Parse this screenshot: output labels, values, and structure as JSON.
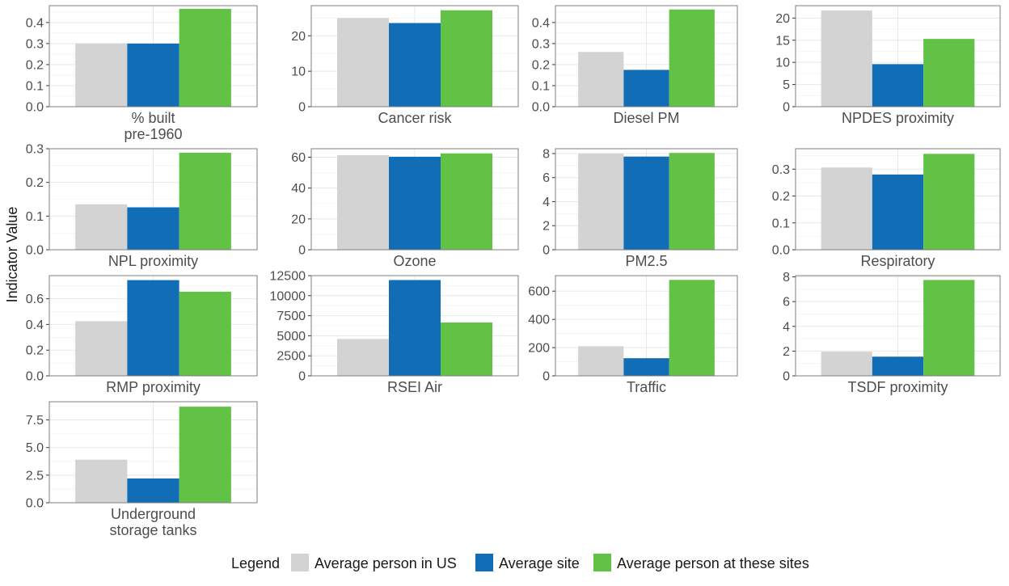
{
  "y_axis_title": "Indicator Value",
  "legend": {
    "title": "Legend",
    "items": [
      {
        "label": "Average person in US",
        "color": "#d3d3d3"
      },
      {
        "label": "Average site",
        "color": "#116db6"
      },
      {
        "label": "Average person at these sites",
        "color": "#62c246"
      }
    ]
  },
  "chart_data": [
    {
      "type": "bar",
      "title": [
        "% built",
        "pre-1960"
      ],
      "ylim": [
        0,
        0.48
      ],
      "ticks": [
        "0.0",
        "0.1",
        "0.2",
        "0.3",
        "0.4"
      ],
      "values": [
        0.3,
        0.3,
        0.465
      ]
    },
    {
      "type": "bar",
      "title": [
        "Cancer risk"
      ],
      "ylim": [
        0,
        28.5
      ],
      "ticks": [
        "0",
        "10",
        "20"
      ],
      "values": [
        25.0,
        23.6,
        27.2
      ]
    },
    {
      "type": "bar",
      "title": [
        "Diesel PM"
      ],
      "ylim": [
        0,
        0.48
      ],
      "ticks": [
        "0.0",
        "0.1",
        "0.2",
        "0.3",
        "0.4"
      ],
      "values": [
        0.26,
        0.175,
        0.462
      ]
    },
    {
      "type": "bar",
      "title": [
        "NPDES proximity"
      ],
      "ylim": [
        0,
        22.8
      ],
      "ticks": [
        "0",
        "5",
        "10",
        "15",
        "20"
      ],
      "values": [
        21.7,
        9.6,
        15.3
      ]
    },
    {
      "type": "bar",
      "title": [
        "NPL proximity"
      ],
      "ylim": [
        0,
        0.3
      ],
      "ticks": [
        "0.0",
        "0.1",
        "0.2",
        "0.3"
      ],
      "values": [
        0.135,
        0.126,
        0.288
      ]
    },
    {
      "type": "bar",
      "title": [
        "Ozone"
      ],
      "ylim": [
        0,
        65.5
      ],
      "ticks": [
        "0",
        "20",
        "40",
        "60"
      ],
      "values": [
        61.4,
        60.3,
        62.5
      ]
    },
    {
      "type": "bar",
      "title": [
        "PM2.5"
      ],
      "ylim": [
        0,
        8.4
      ],
      "ticks": [
        "0",
        "2",
        "4",
        "6",
        "8"
      ],
      "values": [
        8.0,
        7.75,
        8.05
      ]
    },
    {
      "type": "bar",
      "title": [
        "Respiratory"
      ],
      "ylim": [
        0,
        0.376
      ],
      "ticks": [
        "0.0",
        "0.1",
        "0.2",
        "0.3"
      ],
      "values": [
        0.306,
        0.28,
        0.357
      ]
    },
    {
      "type": "bar",
      "title": [
        "RMP proximity"
      ],
      "ylim": [
        0,
        0.78
      ],
      "ticks": [
        "0.0",
        "0.2",
        "0.4",
        "0.6"
      ],
      "values": [
        0.425,
        0.745,
        0.655
      ]
    },
    {
      "type": "bar",
      "title": [
        "RSEI Air"
      ],
      "ylim": [
        0,
        12500
      ],
      "ticks": [
        "0",
        "2500",
        "5000",
        "7500",
        "10000",
        "12500"
      ],
      "values": [
        4600,
        11950,
        6650
      ]
    },
    {
      "type": "bar",
      "title": [
        "Traffic"
      ],
      "ylim": [
        0,
        710
      ],
      "ticks": [
        "0",
        "200",
        "400",
        "600"
      ],
      "values": [
        210,
        125,
        680
      ]
    },
    {
      "type": "bar",
      "title": [
        "TSDF proximity"
      ],
      "ylim": [
        0,
        8.1
      ],
      "ticks": [
        "0",
        "2",
        "4",
        "6",
        "8"
      ],
      "values": [
        1.95,
        1.55,
        7.75
      ]
    },
    {
      "type": "bar",
      "title": [
        "Underground",
        "storage tanks"
      ],
      "ylim": [
        0,
        9.15
      ],
      "ticks": [
        "0.0",
        "2.5",
        "5.0",
        "7.5"
      ],
      "values": [
        3.9,
        2.2,
        8.7
      ]
    }
  ]
}
